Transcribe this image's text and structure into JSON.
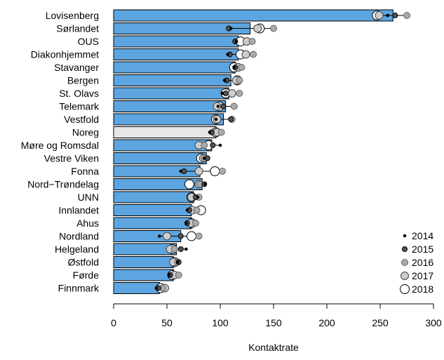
{
  "chart_data": {
    "type": "bar",
    "orientation": "horizontal",
    "xlabel": "Kontaktrate",
    "xlim": [
      0,
      300
    ],
    "xticks": [
      0,
      50,
      100,
      150,
      200,
      250,
      300
    ],
    "categories": [
      "Lovisenberg",
      "Sørlandet",
      "OUS",
      "Diakonhjemmet",
      "Stavanger",
      "Bergen",
      "St. Olavs",
      "Telemark",
      "Vestfold",
      "Noreg",
      "Møre og Romsdal",
      "Vestre Viken",
      "Fonna",
      "Nord−Trøndelag",
      "UNN",
      "Innlandet",
      "Ahus",
      "Nordland",
      "Helgeland",
      "Østfold",
      "Førde",
      "Finnmark"
    ],
    "values": [
      262,
      128,
      117,
      117,
      114,
      110,
      108,
      105,
      103,
      96,
      92,
      87,
      81,
      83,
      75,
      73,
      73,
      63,
      59,
      56,
      56,
      43
    ],
    "highlight_category": "Noreg",
    "bar_color": "#5DA5E0",
    "highlight_color": "#E6E6E6",
    "legend_position": "bottom-right",
    "series": [
      {
        "name": "2014",
        "values": [
          257,
          110,
          115,
          107,
          113,
          104,
          102,
          98,
          96,
          90,
          100,
          85,
          63,
          86,
          79,
          69,
          68,
          43,
          68,
          60,
          52,
          40
        ]
      },
      {
        "name": "2015",
        "values": [
          264,
          108,
          114,
          109,
          114,
          106,
          105,
          103,
          110,
          92,
          93,
          88,
          66,
          85,
          77,
          71,
          69,
          63,
          63,
          61,
          53,
          42
        ]
      },
      {
        "name": "2016",
        "values": [
          275,
          150,
          130,
          131,
          120,
          118,
          118,
          113,
          111,
          101,
          85,
          85,
          102,
          81,
          80,
          78,
          77,
          80,
          57,
          60,
          61,
          46
        ]
      },
      {
        "name": "2017",
        "values": [
          249,
          135,
          125,
          124,
          117,
          115,
          111,
          97,
          97,
          97,
          80,
          84,
          80,
          80,
          73,
          74,
          72,
          50,
          53,
          56,
          57,
          48
        ]
      },
      {
        "name": "2018",
        "values": [
          247,
          137,
          119,
          119,
          113,
          116,
          105,
          99,
          96,
          96,
          89,
          82,
          95,
          71,
          73,
          82,
          73,
          73,
          55,
          57,
          55,
          44
        ]
      }
    ]
  }
}
